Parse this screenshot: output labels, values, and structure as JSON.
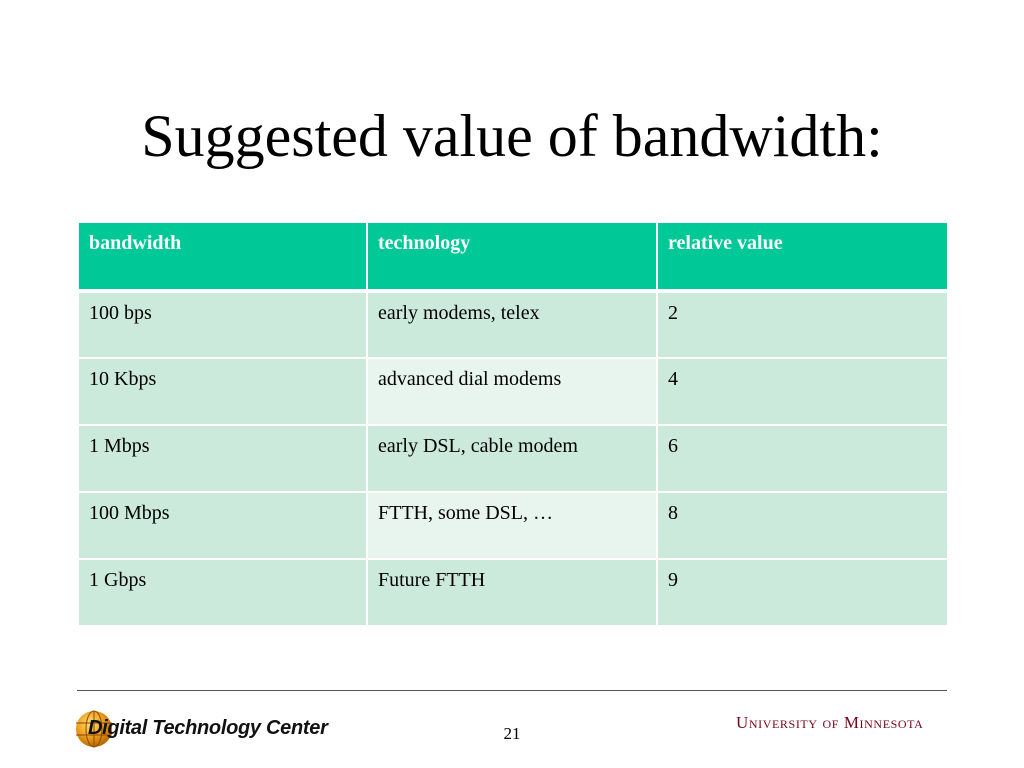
{
  "slide": {
    "title": "Suggested value of bandwidth:",
    "page_number": "21"
  },
  "table": {
    "headers": [
      "bandwidth",
      "technology",
      "relative value"
    ],
    "rows": [
      [
        "100 bps",
        "early modems, telex",
        "2"
      ],
      [
        "10 Kbps",
        "advanced dial modems",
        "4"
      ],
      [
        "1 Mbps",
        "early DSL, cable modem",
        "6"
      ],
      [
        "100 Mbps",
        "FTTH, some DSL, …",
        "8"
      ],
      [
        "1 Gbps",
        "Future FTTH",
        "9"
      ]
    ]
  },
  "footer": {
    "left_logo_text": "Digital Technology Center",
    "right_logo_text": "University of Minnesota"
  },
  "colors": {
    "header_fill": "#00c896",
    "row_fill": "#cceadc",
    "row_fill_light": "#e8f5ef",
    "umn_maroon": "#7a0019"
  }
}
